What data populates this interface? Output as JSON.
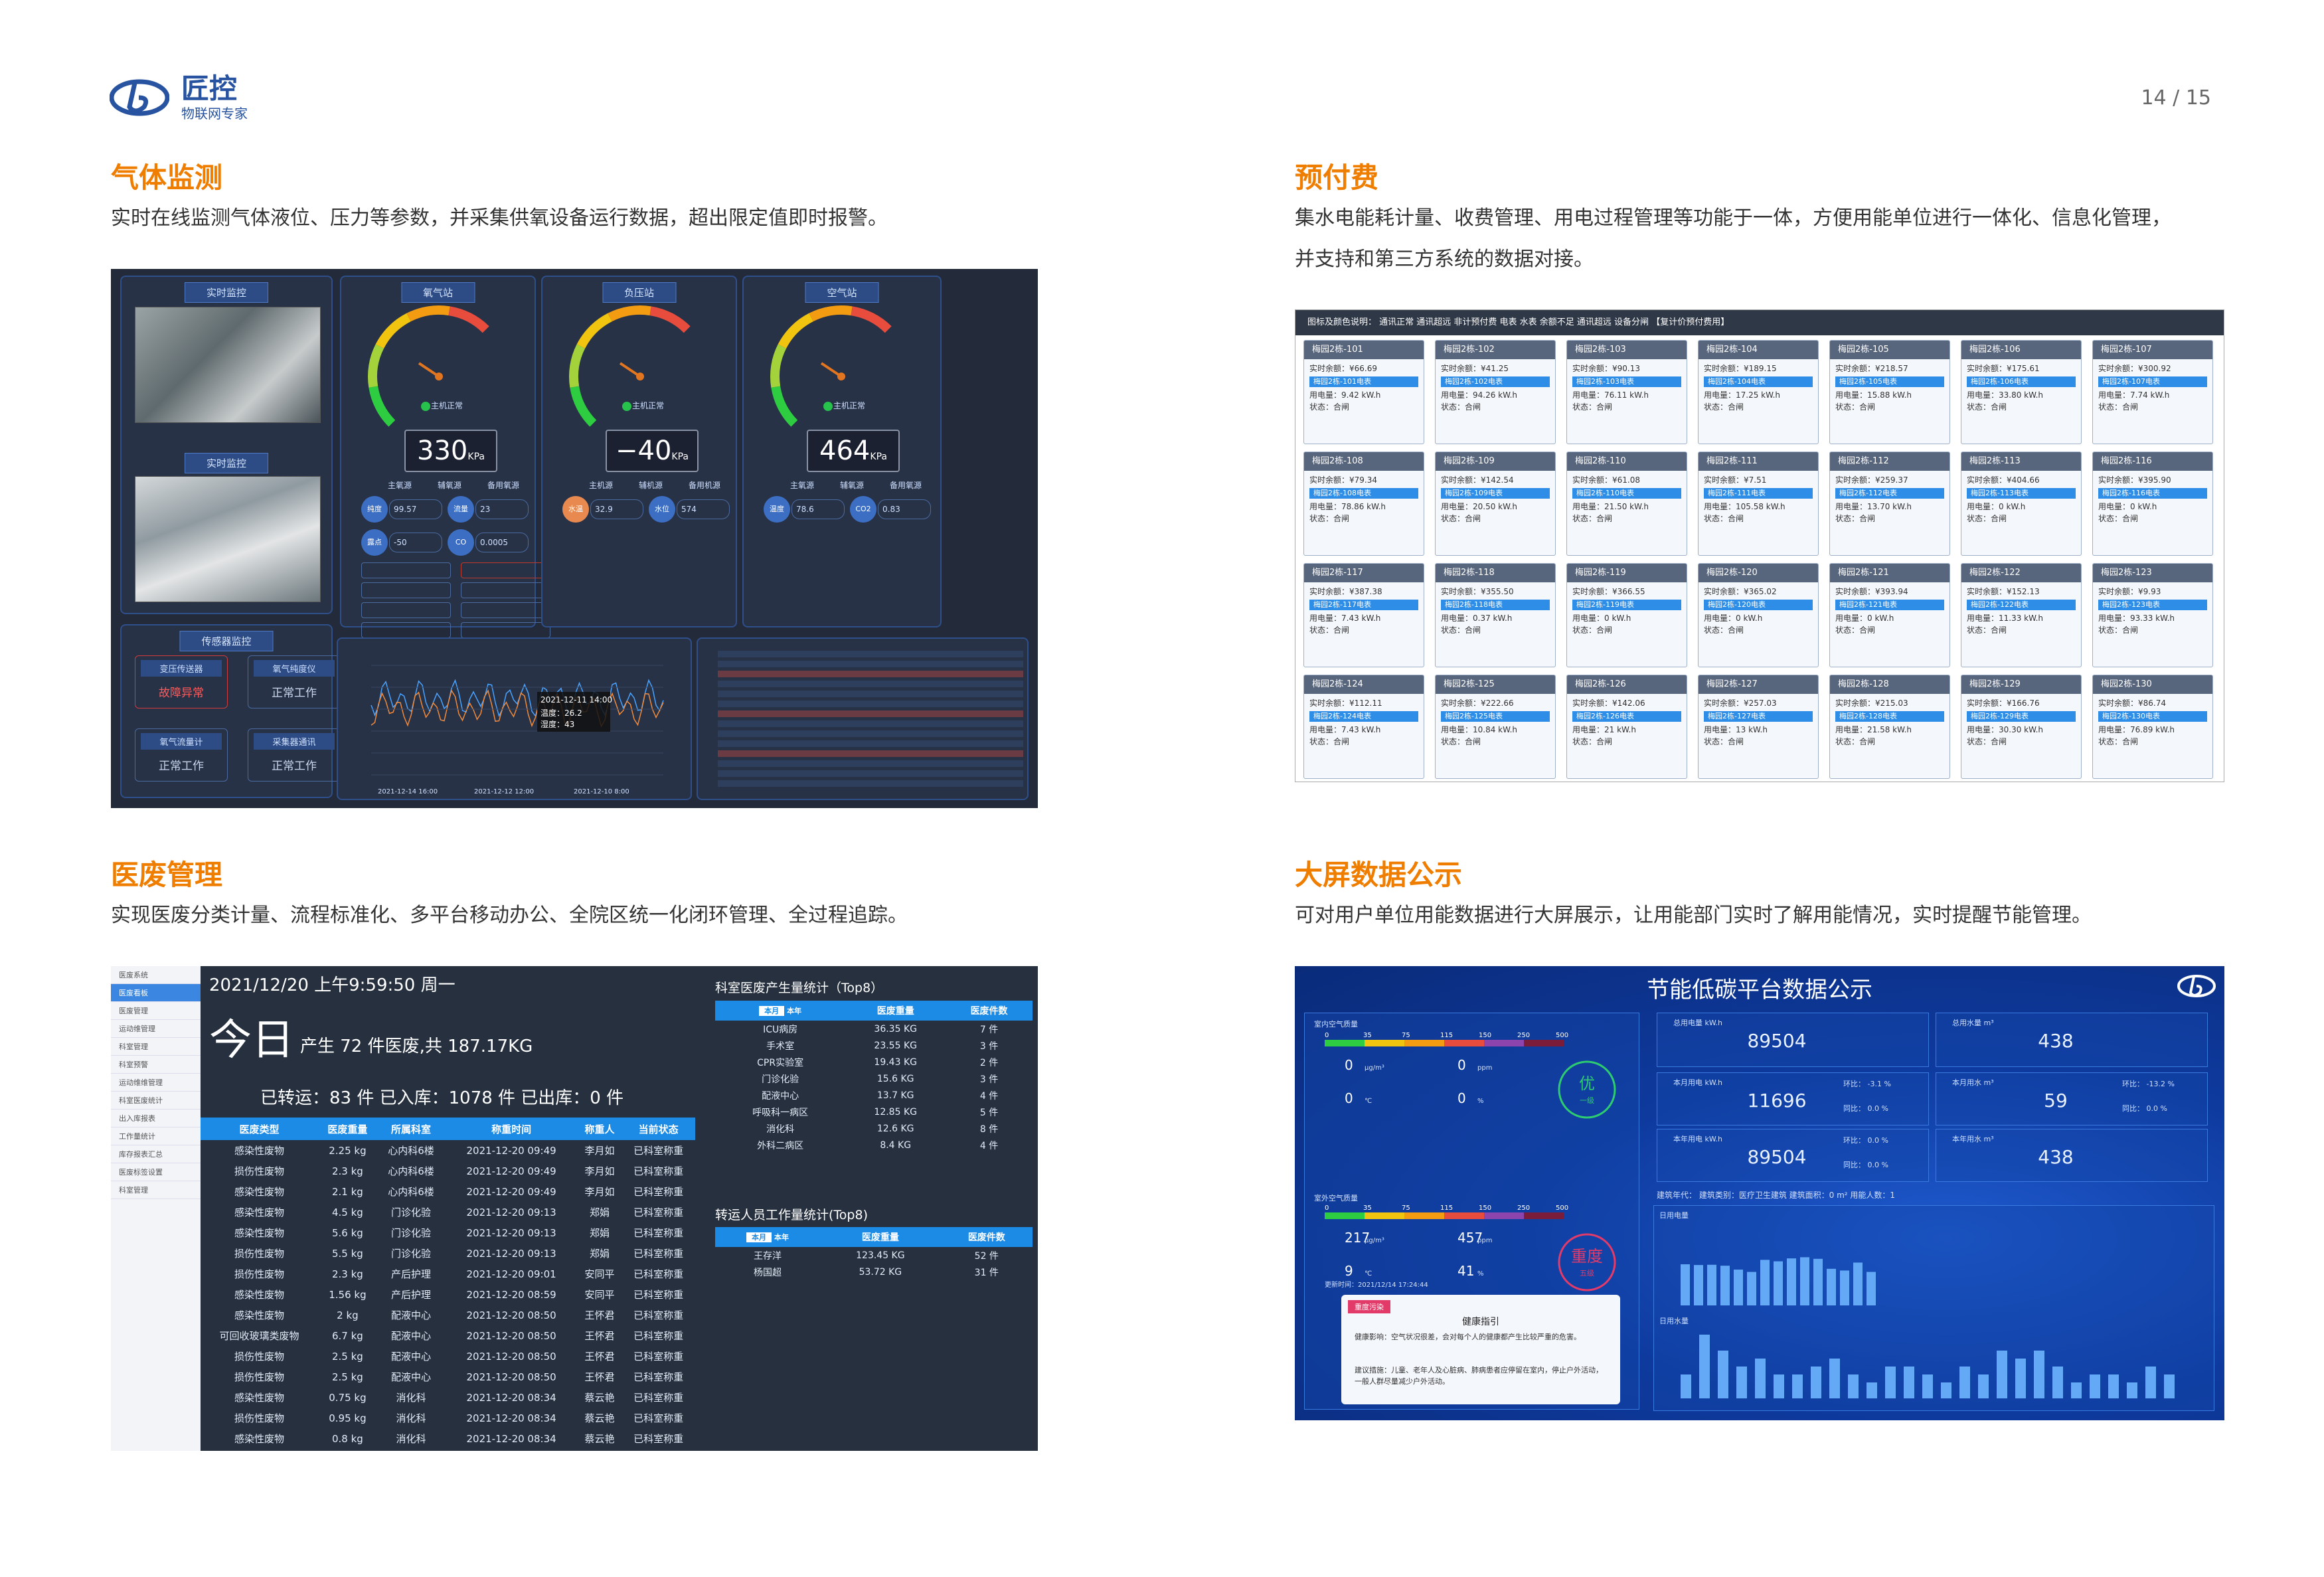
{
  "header": {
    "brand_name": "匠控",
    "brand_sub": "物联网专家",
    "page_num": "14 / 15"
  },
  "sections": {
    "gas": {
      "title": "气体监测",
      "desc": "实时在线监测气体液位、压力等参数，并采集供氧设备运行数据，超出限定值即时报警。"
    },
    "prepay": {
      "title": "预付费",
      "desc1": "集水电能耗计量、收费管理、用电过程管理等功能于一体，方便用能单位进行一体化、信息化管理，",
      "desc2": "并支持和第三方系统的数据对接。"
    },
    "med": {
      "title": "医废管理",
      "desc": "实现医废分类计量、流程标准化、多平台移动办公、全院区统一化闭环管理、全过程追踪。"
    },
    "big": {
      "title": "大屏数据公示",
      "desc": "可对用户单位用能数据进行大屏展示，让用能部门实时了解用能情况，实时提醒节能管理。"
    }
  },
  "gas_ui": {
    "live": "实时监控",
    "sensor": "传感器监控",
    "stations": [
      {
        "name": "氧气站",
        "value": "330",
        "unit": "KPa",
        "status": "主机正常"
      },
      {
        "name": "负压站",
        "value": "−40",
        "unit": "KPa",
        "status": "主机正常"
      },
      {
        "name": "空气站",
        "value": "464",
        "unit": "KPa",
        "status": "主机正常"
      }
    ],
    "sources": [
      "主氧源",
      "辅氧源",
      "备用氧源",
      "主机源",
      "辅机源",
      "备用机源"
    ],
    "fields": {
      "purity": "纯度",
      "flow": "流量",
      "dew": "露点",
      "co": "CO",
      "water": "水温",
      "level": "水位",
      "temp": "温度",
      "co2": "CO2"
    },
    "vals": {
      "purity": "99.57",
      "flow": "23",
      "dew": "-50",
      "co": "0.0005",
      "water": "32.9",
      "level": "574",
      "temp": "78.6",
      "co2": "0.83"
    },
    "sensors": [
      {
        "t": "变压传送器",
        "v": "故障异常"
      },
      {
        "t": "氧气纯度仪",
        "v": "正常工作"
      },
      {
        "t": "氧气流量计",
        "v": "正常工作"
      },
      {
        "t": "采集器通讯",
        "v": "正常工作"
      }
    ],
    "tooltip": {
      "time": "2021-12-11 14:00",
      "temp": "温度：26.2",
      "hum": "湿度：43"
    },
    "xticks": [
      "2021-12-14 16:00",
      "2021-12-12 12:00",
      "2021-12-10 8:00"
    ]
  },
  "prepay_ui": {
    "legend": "图标及颜色说明：  通讯正常   通讯超远   非计预付费   电表   水表   余额不足   通讯超远   设备分闸   【复计价预付费用】",
    "cards": [
      {
        "n": "梅园2栋-101",
        "bal": "¥66.69",
        "use": "9.42 kW.h"
      },
      {
        "n": "梅园2栋-102",
        "bal": "¥41.25",
        "use": "94.26 kW.h"
      },
      {
        "n": "梅园2栋-103",
        "bal": "¥90.13",
        "use": "76.11 kW.h"
      },
      {
        "n": "梅园2栋-104",
        "bal": "¥189.15",
        "use": "17.25 kW.h"
      },
      {
        "n": "梅园2栋-105",
        "bal": "¥218.57",
        "use": "15.88 kW.h"
      },
      {
        "n": "梅园2栋-106",
        "bal": "¥175.61",
        "use": "33.80 kW.h"
      },
      {
        "n": "梅园2栋-107",
        "bal": "¥300.92",
        "use": "7.74 kW.h"
      },
      {
        "n": "梅园2栋-108",
        "bal": "¥79.34",
        "use": "78.86 kW.h"
      },
      {
        "n": "梅园2栋-109",
        "bal": "¥142.54",
        "use": "20.50 kW.h"
      },
      {
        "n": "梅园2栋-110",
        "bal": "¥61.08",
        "use": "21.50 kW.h"
      },
      {
        "n": "梅园2栋-111",
        "bal": "¥7.51",
        "use": "105.58 kW.h"
      },
      {
        "n": "梅园2栋-112",
        "bal": "¥259.37",
        "use": "13.70 kW.h"
      },
      {
        "n": "梅园2栋-113",
        "bal": "¥404.66",
        "use": "0 kW.h"
      },
      {
        "n": "梅园2栋-116",
        "bal": "¥395.90",
        "use": "0 kW.h"
      },
      {
        "n": "梅园2栋-117",
        "bal": "¥387.38",
        "use": "7.43 kW.h"
      },
      {
        "n": "梅园2栋-118",
        "bal": "¥355.50",
        "use": "0.37 kW.h"
      },
      {
        "n": "梅园2栋-119",
        "bal": "¥366.55",
        "use": "0 kW.h"
      },
      {
        "n": "梅园2栋-120",
        "bal": "¥365.02",
        "use": "0 kW.h"
      },
      {
        "n": "梅园2栋-121",
        "bal": "¥393.94",
        "use": "0 kW.h"
      },
      {
        "n": "梅园2栋-122",
        "bal": "¥152.13",
        "use": "11.33 kW.h"
      },
      {
        "n": "梅园2栋-123",
        "bal": "¥9.93",
        "use": "93.33 kW.h"
      },
      {
        "n": "梅园2栋-124",
        "bal": "¥112.11",
        "use": "7.43 kW.h"
      },
      {
        "n": "梅园2栋-125",
        "bal": "¥222.66",
        "use": "10.84 kW.h"
      },
      {
        "n": "梅园2栋-126",
        "bal": "¥142.06",
        "use": "21 kW.h"
      },
      {
        "n": "梅园2栋-127",
        "bal": "¥257.03",
        "use": "13 kW.h"
      },
      {
        "n": "梅园2栋-128",
        "bal": "¥215.03",
        "use": "21.58 kW.h"
      },
      {
        "n": "梅园2栋-129",
        "bal": "¥166.76",
        "use": "30.30 kW.h"
      },
      {
        "n": "梅园2栋-130",
        "bal": "¥86.74",
        "use": "76.89 kW.h"
      }
    ]
  },
  "med_ui": {
    "datetime": "2021/12/20 上午9:59:50 周一",
    "today": "今日",
    "produced": "产生 72 件医废,共 187.17KG",
    "summary": "已转运：83 件   已入库：1078 件   已出库：0 件",
    "side": [
      "医废系统",
      "医废看板",
      "医废管理",
      "运动维管理",
      "科室管理",
      "科室预警",
      "运动维维管理",
      "科室医废统计",
      "出入库报表",
      "工作量统计",
      "库存报表汇总",
      "医废标签设置",
      "科室管理"
    ],
    "cols": [
      "医废类型",
      "医废重量",
      "所属科室",
      "称重时间",
      "称重人",
      "当前状态"
    ],
    "rows": [
      [
        "感染性废物",
        "2.25 kg",
        "心内科6楼",
        "2021-12-20 09:49",
        "李月如",
        "已科室称重"
      ],
      [
        "损伤性废物",
        "2.3 kg",
        "心内科6楼",
        "2021-12-20 09:49",
        "李月如",
        "已科室称重"
      ],
      [
        "感染性废物",
        "2.1 kg",
        "心内科6楼",
        "2021-12-20 09:49",
        "李月如",
        "已科室称重"
      ],
      [
        "感染性废物",
        "4.5 kg",
        "门诊化验",
        "2021-12-20 09:13",
        "郑娟",
        "已科室称重"
      ],
      [
        "感染性废物",
        "5.6 kg",
        "门诊化验",
        "2021-12-20 09:13",
        "郑娟",
        "已科室称重"
      ],
      [
        "损伤性废物",
        "5.5 kg",
        "门诊化验",
        "2021-12-20 09:13",
        "郑娟",
        "已科室称重"
      ],
      [
        "损伤性废物",
        "2.3 kg",
        "产后护理",
        "2021-12-20 09:01",
        "安同平",
        "已科室称重"
      ],
      [
        "感染性废物",
        "1.56 kg",
        "产后护理",
        "2021-12-20 08:59",
        "安同平",
        "已科室称重"
      ],
      [
        "感染性废物",
        "2 kg",
        "配液中心",
        "2021-12-20 08:50",
        "王怀君",
        "已科室称重"
      ],
      [
        "可回收玻璃类废物",
        "6.7 kg",
        "配液中心",
        "2021-12-20 08:50",
        "王怀君",
        "已科室称重"
      ],
      [
        "损伤性废物",
        "2.5 kg",
        "配液中心",
        "2021-12-20 08:50",
        "王怀君",
        "已科室称重"
      ],
      [
        "损伤性废物",
        "2.5 kg",
        "配液中心",
        "2021-12-20 08:50",
        "王怀君",
        "已科室称重"
      ],
      [
        "感染性废物",
        "0.75 kg",
        "消化科",
        "2021-12-20 08:34",
        "蔡云艳",
        "已科室称重"
      ],
      [
        "损伤性废物",
        "0.95 kg",
        "消化科",
        "2021-12-20 08:34",
        "蔡云艳",
        "已科室称重"
      ],
      [
        "感染性废物",
        "0.8 kg",
        "消化科",
        "2021-12-20 08:34",
        "蔡云艳",
        "已科室称重"
      ]
    ],
    "dept_title": "科室医废产生量统计（Top8）",
    "staff_title": "转运人员工作量统计(Top8)",
    "tab_month": "本月",
    "tab_year": "本年",
    "c_dept": "医废重量",
    "c_cnt": "医废件数",
    "dept": [
      [
        "ICU病房",
        "36.35 KG",
        "7 件"
      ],
      [
        "手术室",
        "23.55 KG",
        "3 件"
      ],
      [
        "CPR实验室",
        "19.43 KG",
        "2 件"
      ],
      [
        "门诊化验",
        "15.6 KG",
        "3 件"
      ],
      [
        "配液中心",
        "13.7 KG",
        "4 件"
      ],
      [
        "呼吸科一病区",
        "12.85 KG",
        "5 件"
      ],
      [
        "消化科",
        "12.6 KG",
        "8 件"
      ],
      [
        "外科二病区",
        "8.4 KG",
        "4 件"
      ]
    ],
    "staff": [
      [
        "王存洋",
        "123.45 KG",
        "52 件"
      ],
      [
        "杨国超",
        "53.72 KG",
        "31 件"
      ]
    ]
  },
  "big_ui": {
    "title": "节能低碳平台数据公示",
    "indoor": "室内空气质量",
    "outdoor": "室外空气质量",
    "scale": [
      "0",
      "35",
      "75",
      "115",
      "150",
      "250",
      "500"
    ],
    "in_vals": {
      "pm": "0",
      "ppm": "0",
      "t": "0",
      "h": "0"
    },
    "in_grade": "优",
    "in_grade_sub": "一级",
    "out_vals": {
      "pm": "217",
      "ppm": "457",
      "t": "9",
      "h": "41"
    },
    "out_grade": "重度",
    "out_grade_sub": "五级",
    "units": {
      "pm": "μg/m³",
      "ppm": "ppm",
      "t": "℃",
      "h": "%"
    },
    "update": "更新时间：2021/12/14 17:24:44",
    "health_tag": "重度污染",
    "health_title": "健康指引",
    "health1": "健康影响：空气状况很差，会对每个人的健康都产生比较严重的危害。",
    "health2": "建议措施：儿童、老年人及心脏病、肺病患者应停留在室内，停止户外活动，一般人群尽量减少户外活动。",
    "k_total_e": "总用电量 kW.h",
    "v_total_e": "89504",
    "k_total_w": "总用水量 m³",
    "v_total_w": "438",
    "k_month_e": "本月用电 kW.h",
    "v_month_e": "11696",
    "k_month_w": "本月用水 m³",
    "v_month_w": "59",
    "k_year_e": "本年用电 kW.h",
    "v_year_e": "89504",
    "k_year_w": "本年用水 m³",
    "v_year_w": "438",
    "ring": "环比：",
    "yoy": "同比：",
    "ring_e": "-3.1 %",
    "yoy_e": "0.0 %",
    "ring_w": "-13.2 %",
    "yoy_w": "0.0 %",
    "yoy_ye": "0.0 %",
    "ring_ye": "0.0 %",
    "bldg": "建筑年代：  建筑类别：医疗卫生建筑  建筑面积：0 m²  用能人数：1",
    "c1": "日用电量",
    "c2": "日用水量"
  }
}
